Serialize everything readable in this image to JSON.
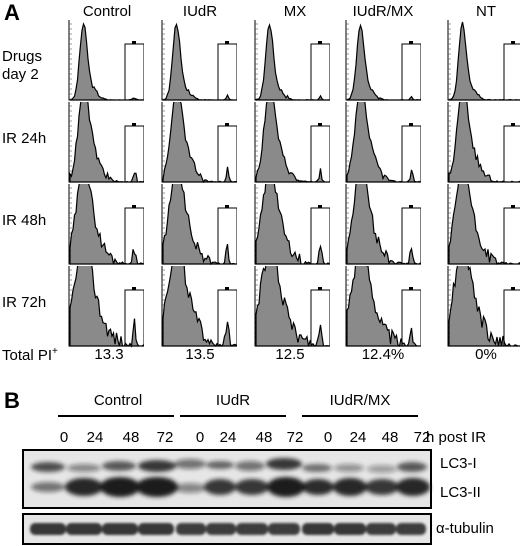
{
  "panel_a": {
    "letter": "A",
    "columns": [
      "Control",
      "IUdR",
      "MX",
      "IUdR/MX",
      "NT"
    ],
    "rows": [
      "Drugs day 2",
      "IR 24h",
      "IR 48h",
      "IR 72h"
    ],
    "total_pi_label": "Total PI+",
    "total_pi_values": [
      "13.3",
      "13.5",
      "12.5",
      "12.4%",
      "0%"
    ]
  },
  "panel_b": {
    "letter": "B",
    "groups": [
      "Control",
      "IUdR",
      "IUdR/MX"
    ],
    "hours": [
      "0",
      "24",
      "48",
      "72",
      "0",
      "24",
      "48",
      "72",
      "0",
      "24",
      "48",
      "72"
    ],
    "hours_suffix": "h post IR",
    "bands": [
      "LC3-I",
      "LC3-II",
      "α-tubulin"
    ]
  }
}
